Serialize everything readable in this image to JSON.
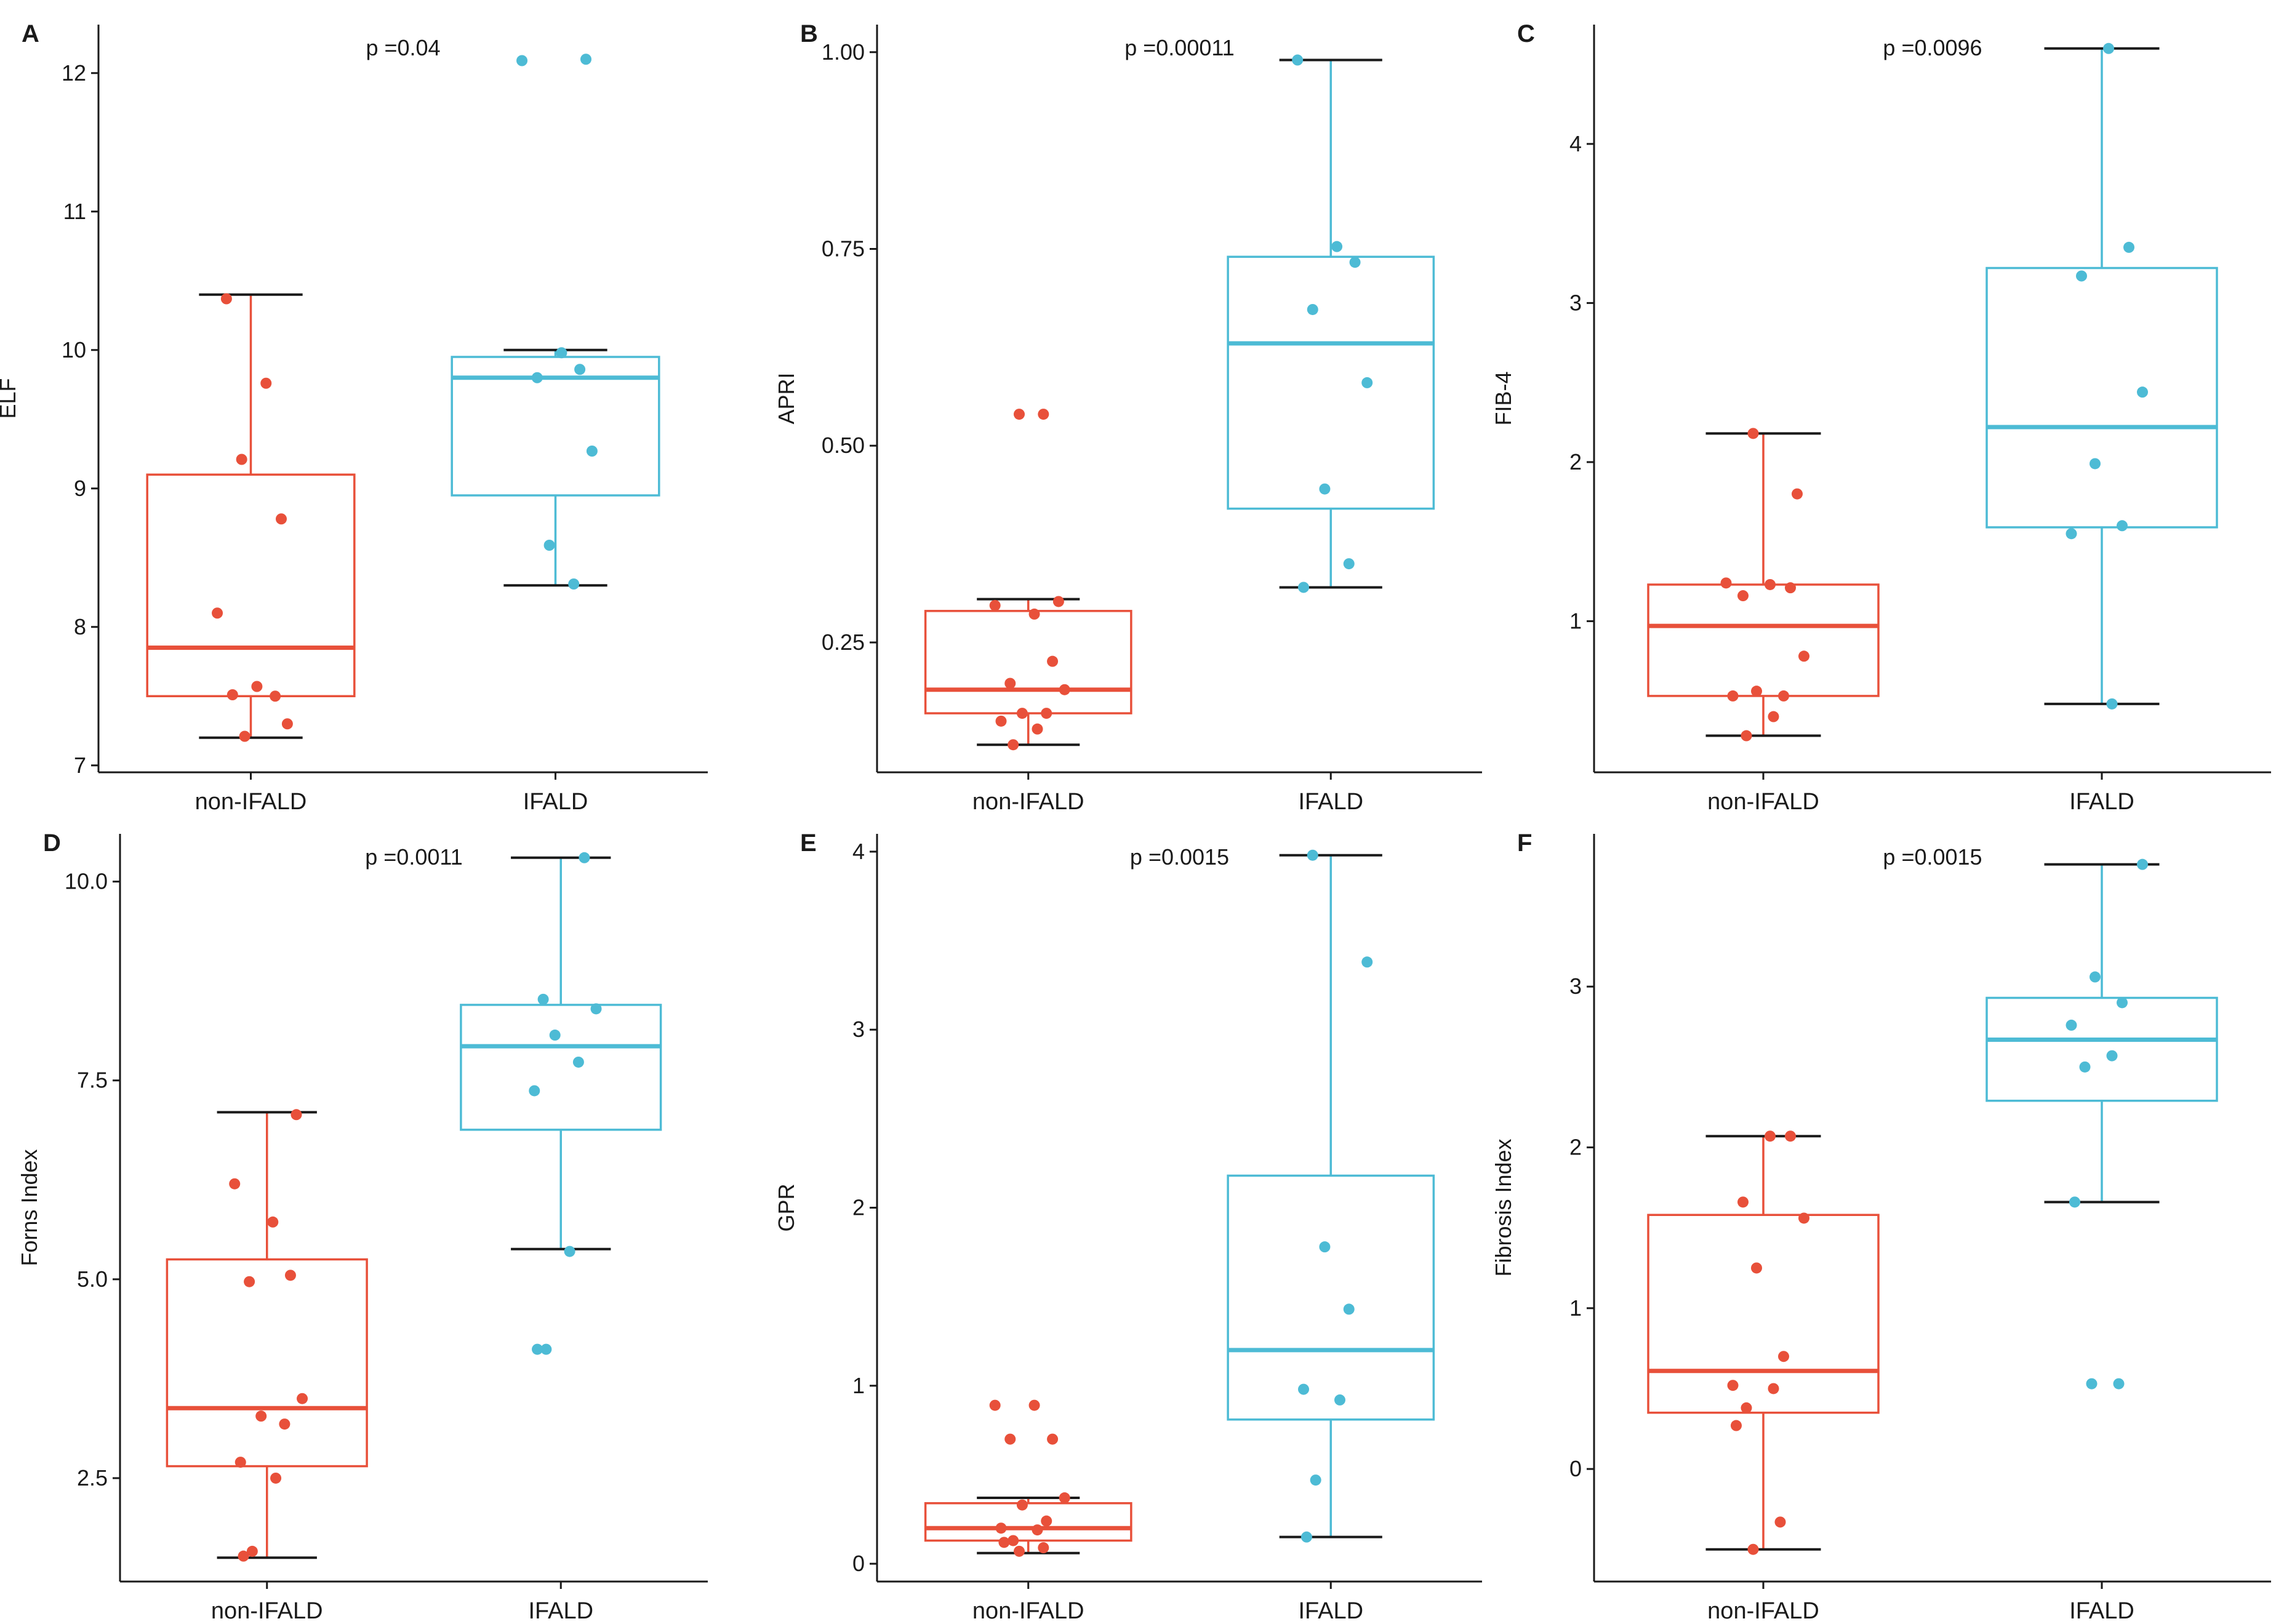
{
  "figure_colors": {
    "non_ifald": "#E8503A",
    "ifald": "#4DBBD5",
    "axis": "#1a1a1a"
  },
  "chart_data": [
    {
      "panel": "A",
      "type": "box",
      "ylabel": "ELF",
      "pvalue_label": "p =0.04",
      "categories": [
        "non-IFALD",
        "IFALD"
      ],
      "ylim": [
        6.95,
        12.35
      ],
      "yticks": [
        7,
        8,
        9,
        10,
        11,
        12
      ],
      "ytick_labels": [
        "7",
        "8",
        "9",
        "10",
        "11",
        "12"
      ],
      "boxes": [
        {
          "group": "non-IFALD",
          "lower_whisker": 7.2,
          "q1": 7.5,
          "median": 7.85,
          "q3": 9.1,
          "upper_whisker": 10.4,
          "points": [
            10.37,
            9.76,
            9.21,
            8.78,
            8.1,
            7.57,
            7.5,
            7.51,
            7.3,
            7.21
          ]
        },
        {
          "group": "IFALD",
          "lower_whisker": 8.3,
          "q1": 8.95,
          "median": 9.8,
          "q3": 9.95,
          "upper_whisker": 10.0,
          "points": [
            12.1,
            12.09,
            9.98,
            9.86,
            9.8,
            9.27,
            8.59,
            8.31
          ]
        }
      ]
    },
    {
      "panel": "B",
      "type": "box",
      "ylabel": "APRI",
      "pvalue_label": "p =0.00011",
      "categories": [
        "non-IFALD",
        "IFALD"
      ],
      "ylim": [
        0.085,
        1.035
      ],
      "yticks": [
        0.25,
        0.5,
        0.75,
        1.0
      ],
      "ytick_labels": [
        "0.25",
        "0.50",
        "0.75",
        "1.00"
      ],
      "boxes": [
        {
          "group": "non-IFALD",
          "lower_whisker": 0.12,
          "q1": 0.16,
          "median": 0.19,
          "q3": 0.29,
          "upper_whisker": 0.305,
          "points": [
            0.54,
            0.54,
            0.302,
            0.297,
            0.286,
            0.226,
            0.198,
            0.19,
            0.16,
            0.16,
            0.15,
            0.14,
            0.12
          ]
        },
        {
          "group": "IFALD",
          "lower_whisker": 0.32,
          "q1": 0.42,
          "median": 0.63,
          "q3": 0.74,
          "upper_whisker": 0.99,
          "points": [
            0.99,
            0.753,
            0.733,
            0.673,
            0.58,
            0.445,
            0.35,
            0.32
          ]
        }
      ]
    },
    {
      "panel": "C",
      "type": "box",
      "ylabel": "FIB-4",
      "pvalue_label": "p =0.0096",
      "categories": [
        "non-IFALD",
        "IFALD"
      ],
      "ylim": [
        0.05,
        4.75
      ],
      "yticks": [
        1,
        2,
        3,
        4
      ],
      "ytick_labels": [
        "1",
        "2",
        "3",
        "4"
      ],
      "boxes": [
        {
          "group": "non-IFALD",
          "lower_whisker": 0.28,
          "q1": 0.53,
          "median": 0.97,
          "q3": 1.23,
          "upper_whisker": 2.18,
          "points": [
            2.18,
            1.8,
            1.24,
            1.23,
            1.21,
            1.16,
            0.78,
            0.56,
            0.53,
            0.53,
            0.4,
            0.28
          ]
        },
        {
          "group": "IFALD",
          "lower_whisker": 0.48,
          "q1": 1.59,
          "median": 2.22,
          "q3": 3.22,
          "upper_whisker": 4.6,
          "points": [
            4.6,
            3.35,
            3.17,
            2.44,
            1.99,
            1.6,
            1.55,
            0.48
          ]
        }
      ]
    },
    {
      "panel": "D",
      "type": "box",
      "ylabel": "Forns Index",
      "pvalue_label": "p =0.0011",
      "categories": [
        "non-IFALD",
        "IFALD"
      ],
      "ylim": [
        1.2,
        10.6
      ],
      "yticks": [
        2.5,
        5.0,
        7.5,
        10.0
      ],
      "ytick_labels": [
        "2.5",
        "5.0",
        "7.5",
        "10.0"
      ],
      "boxes": [
        {
          "group": "non-IFALD",
          "lower_whisker": 1.5,
          "q1": 2.65,
          "median": 3.38,
          "q3": 5.25,
          "upper_whisker": 7.1,
          "points": [
            7.07,
            6.2,
            5.72,
            5.05,
            4.97,
            3.5,
            3.28,
            3.18,
            2.7,
            2.5,
            1.58,
            1.52
          ]
        },
        {
          "group": "IFALD",
          "lower_whisker": 5.38,
          "q1": 6.88,
          "median": 7.93,
          "q3": 8.45,
          "upper_whisker": 10.3,
          "points": [
            10.3,
            8.52,
            8.4,
            8.07,
            7.73,
            7.37,
            5.35,
            4.12,
            4.12
          ]
        }
      ]
    },
    {
      "panel": "E",
      "type": "box",
      "ylabel": "GPR",
      "pvalue_label": "p =0.0015",
      "categories": [
        "non-IFALD",
        "IFALD"
      ],
      "ylim": [
        -0.1,
        4.1
      ],
      "yticks": [
        0,
        1,
        2,
        3,
        4
      ],
      "ytick_labels": [
        "0",
        "1",
        "2",
        "3",
        "4"
      ],
      "boxes": [
        {
          "group": "non-IFALD",
          "lower_whisker": 0.06,
          "q1": 0.13,
          "median": 0.2,
          "q3": 0.34,
          "upper_whisker": 0.37,
          "points": [
            0.89,
            0.89,
            0.7,
            0.7,
            0.37,
            0.33,
            0.24,
            0.2,
            0.19,
            0.13,
            0.12,
            0.09,
            0.07
          ]
        },
        {
          "group": "IFALD",
          "lower_whisker": 0.15,
          "q1": 0.81,
          "median": 1.2,
          "q3": 2.18,
          "upper_whisker": 3.98,
          "points": [
            3.98,
            3.38,
            1.78,
            1.43,
            0.98,
            0.92,
            0.47,
            0.15
          ]
        }
      ]
    },
    {
      "panel": "F",
      "type": "box",
      "ylabel": "Fibrosis Index",
      "pvalue_label": "p =0.0015",
      "categories": [
        "non-IFALD",
        "IFALD"
      ],
      "ylim": [
        -0.7,
        3.95
      ],
      "yticks": [
        0,
        1,
        2,
        3
      ],
      "ytick_labels": [
        "0",
        "1",
        "2",
        "3"
      ],
      "boxes": [
        {
          "group": "non-IFALD",
          "lower_whisker": -0.5,
          "q1": 0.35,
          "median": 0.61,
          "q3": 1.58,
          "upper_whisker": 2.07,
          "points": [
            2.07,
            2.07,
            1.66,
            1.56,
            1.25,
            0.7,
            0.52,
            0.5,
            0.38,
            0.27,
            -0.33,
            -0.5
          ]
        },
        {
          "group": "IFALD",
          "lower_whisker": 1.66,
          "q1": 2.29,
          "median": 2.67,
          "q3": 2.93,
          "upper_whisker": 3.76,
          "points": [
            3.76,
            3.06,
            2.9,
            2.76,
            2.57,
            2.5,
            1.66,
            0.53,
            0.53
          ]
        }
      ]
    }
  ]
}
